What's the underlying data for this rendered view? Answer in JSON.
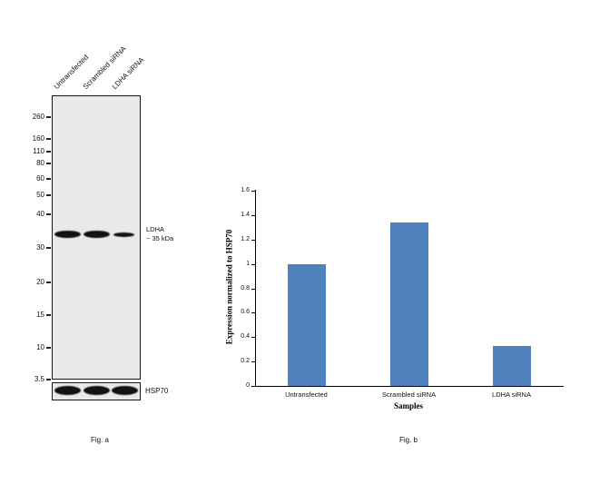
{
  "figure": {
    "fig_a_label": "Fig. a",
    "fig_b_label": "Fig. b"
  },
  "blot": {
    "lanes": [
      "Untransfected",
      "Scrambled siRNA",
      "LDHA siRNA"
    ],
    "mw_markers": [
      "260",
      "160",
      "110",
      "80",
      "60",
      "50",
      "40",
      "30",
      "20",
      "15",
      "10",
      "3.5"
    ],
    "band_label_line1": "LDHA",
    "band_label_line2": "~ 35 kDa",
    "loading_control_label": "HSP70",
    "gel_color": "#e9e9e9",
    "band_color": "#121212"
  },
  "chart_data": {
    "type": "bar",
    "categories": [
      "Untransfected",
      "Scrambled siRNA",
      "LDHA siRNA"
    ],
    "values": [
      1.0,
      1.34,
      0.33
    ],
    "title": "",
    "xlabel": "Samples",
    "ylabel": "Expression normalized to HSP70",
    "ylim": [
      0,
      1.6
    ],
    "yticks": [
      "0",
      "0.2",
      "0.4",
      "0.6",
      "0.8",
      "1",
      "1.2",
      "1.4",
      "1.6"
    ],
    "bar_color": "#4f81bd",
    "grid": false,
    "legend": false
  }
}
